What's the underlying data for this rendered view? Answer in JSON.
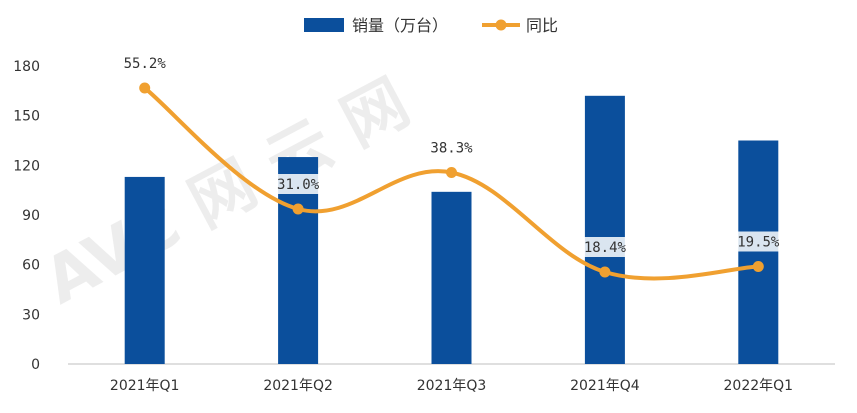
{
  "chart_data": {
    "type": "bar",
    "categories": [
      "2021年Q1",
      "2021年Q2",
      "2021年Q3",
      "2021年Q4",
      "2022年Q1"
    ],
    "series": [
      {
        "name": "销量（万台）",
        "kind": "bar",
        "color": "#0b4f9c",
        "values": [
          113,
          125,
          104,
          162,
          135
        ]
      },
      {
        "name": "同比",
        "kind": "line",
        "color": "#f0a030",
        "values": [
          55.2,
          31.0,
          38.3,
          18.4,
          19.5
        ],
        "labels": [
          "55.2%",
          "31.0%",
          "38.3%",
          "18.4%",
          "19.5%"
        ]
      }
    ],
    "yticks": [
      "0",
      "30",
      "60",
      "90",
      "120",
      "150",
      "180"
    ],
    "ylim": [
      0,
      180
    ],
    "legend_position": "top-center",
    "grid": false
  },
  "watermark": "AVC 网 云 网"
}
